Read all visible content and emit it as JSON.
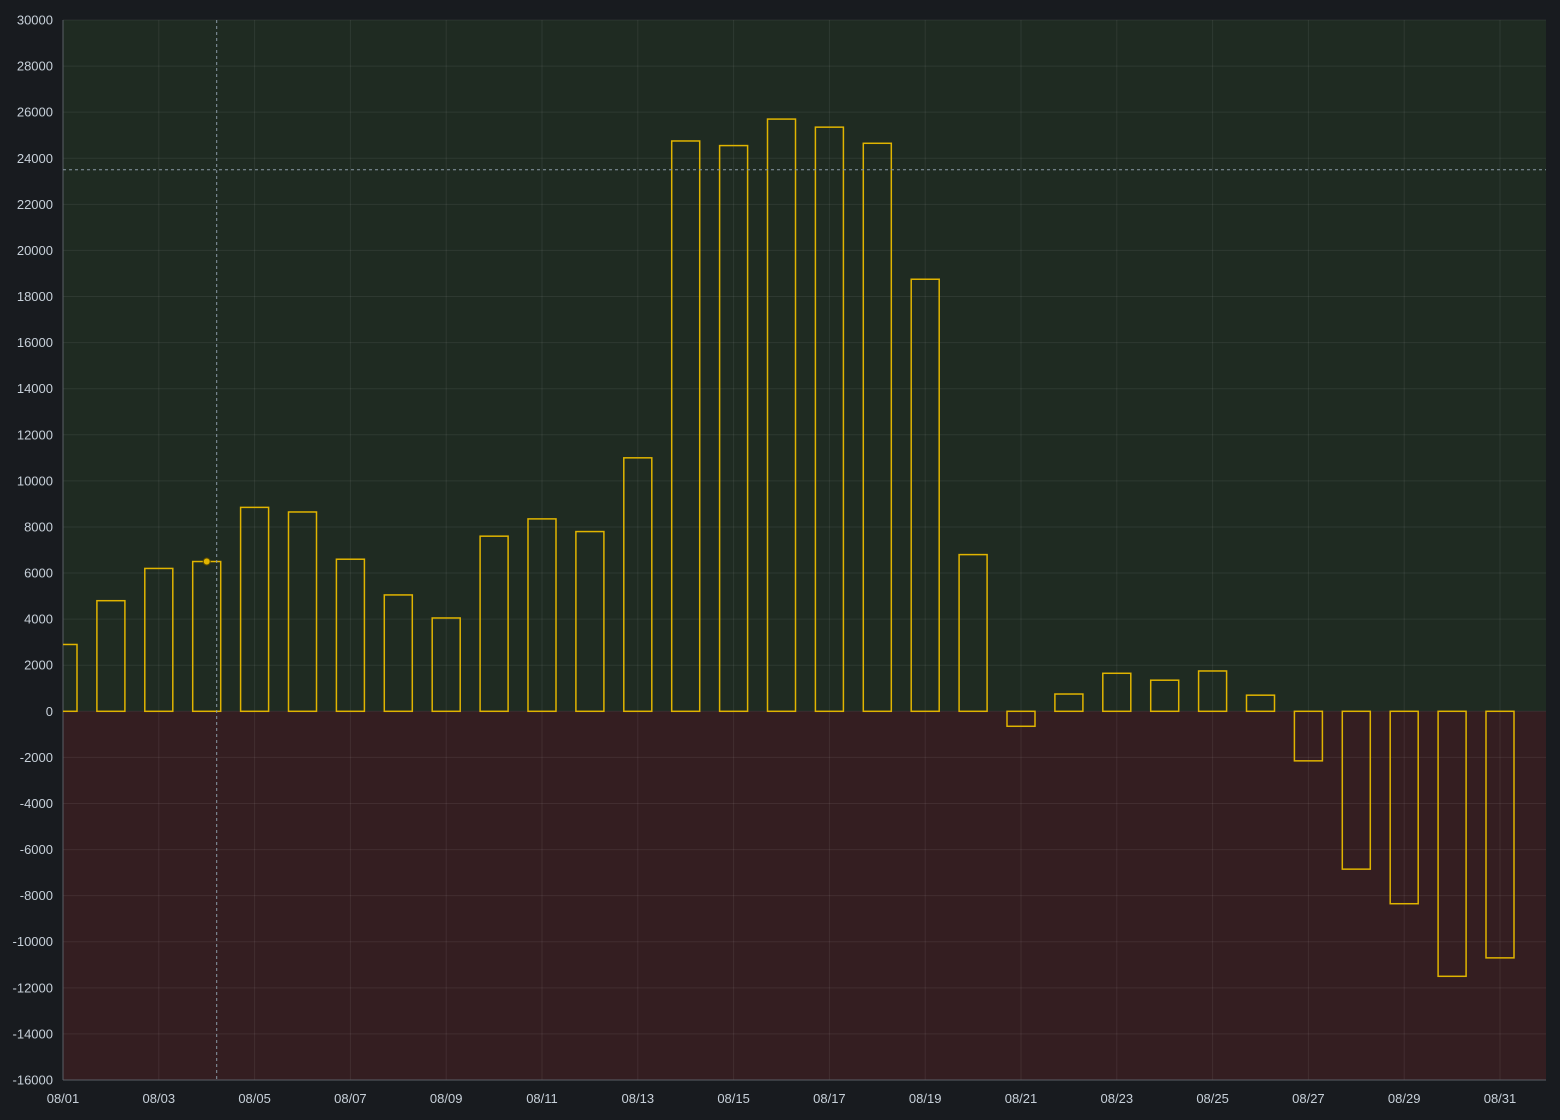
{
  "chart_data": {
    "type": "bar",
    "ylim": [
      -16000,
      30000
    ],
    "y_ticks": [
      30000,
      28000,
      26000,
      24000,
      22000,
      20000,
      18000,
      16000,
      14000,
      12000,
      10000,
      8000,
      6000,
      4000,
      2000,
      0,
      -2000,
      -4000,
      -6000,
      -8000,
      -10000,
      -12000,
      -14000,
      -16000
    ],
    "y_tick_labels": [
      "30000",
      "28000",
      "26000",
      "24000",
      "22000",
      "20000",
      "18000",
      "16000",
      "14000",
      "12000",
      "10000",
      "8000",
      "6000",
      "4000",
      "2000",
      "0",
      "-2000",
      "-4000",
      "-6000",
      "-8000",
      "-10000",
      "-12000",
      "-14000",
      "-16000"
    ],
    "x_tick_labels": [
      "08/01",
      "08/03",
      "08/05",
      "08/07",
      "08/09",
      "08/11",
      "08/13",
      "08/15",
      "08/17",
      "08/19",
      "08/21",
      "08/23",
      "08/25",
      "08/27",
      "08/29",
      "08/31"
    ],
    "categories": [
      "08/01",
      "08/02",
      "08/03",
      "08/04",
      "08/05",
      "08/06",
      "08/07",
      "08/08",
      "08/09",
      "08/10",
      "08/11",
      "08/12",
      "08/13",
      "08/14",
      "08/15",
      "08/16",
      "08/17",
      "08/18",
      "08/19",
      "08/20",
      "08/21",
      "08/22",
      "08/23",
      "08/24",
      "08/25",
      "08/26",
      "08/27",
      "08/28",
      "08/29",
      "08/30",
      "08/31"
    ],
    "values": [
      2900,
      4800,
      6200,
      6500,
      8850,
      8650,
      6600,
      5050,
      4050,
      7600,
      8350,
      7800,
      11000,
      24750,
      24550,
      25700,
      25350,
      24650,
      18750,
      6800,
      -650,
      750,
      1650,
      1350,
      1750,
      700,
      -2150,
      -6850,
      -8350,
      -11500,
      -10700
    ],
    "threshold": 23500,
    "hover_category": "08/04",
    "colors": {
      "background": "#181b1f",
      "positive_region": "#1f2b22",
      "negative_region": "#341e21",
      "bar_stroke": "#e0b400",
      "grid": "#2c3235",
      "axis_text": "#c7d0d9"
    }
  }
}
